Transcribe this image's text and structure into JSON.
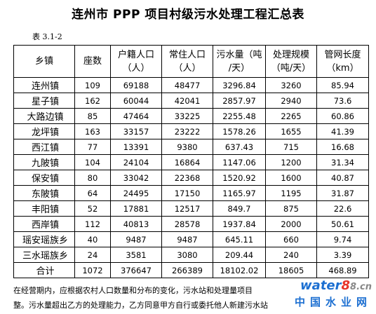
{
  "title": "连州市 PPP 项目村级污水处理工程汇总表",
  "table_no": "表 3.1-2",
  "headers": {
    "town": "乡镇",
    "seats": "座数",
    "reg_pop_1": "户籍人口",
    "reg_pop_2": "（人）",
    "res_pop_1": "常住人口",
    "res_pop_2": "（人）",
    "sewage_1": "污水量（吨",
    "sewage_2": "/天）",
    "capacity_1": "处理规模",
    "capacity_2": "（吨/天）",
    "pipe_1": "管网长度",
    "pipe_2": "（km）"
  },
  "rows": [
    {
      "town": "连州镇",
      "seats": "109",
      "reg_pop": "69188",
      "res_pop": "48477",
      "sewage": "3296.84",
      "capacity": "3260",
      "pipe": "85.94"
    },
    {
      "town": "星子镇",
      "seats": "162",
      "reg_pop": "60044",
      "res_pop": "42041",
      "sewage": "2857.97",
      "capacity": "2940",
      "pipe": "73.6"
    },
    {
      "town": "大路边镇",
      "seats": "85",
      "reg_pop": "47464",
      "res_pop": "33225",
      "sewage": "2255.48",
      "capacity": "2265",
      "pipe": "60.86"
    },
    {
      "town": "龙坪镇",
      "seats": "163",
      "reg_pop": "33157",
      "res_pop": "23222",
      "sewage": "1578.26",
      "capacity": "1655",
      "pipe": "41.39"
    },
    {
      "town": "西江镇",
      "seats": "77",
      "reg_pop": "13391",
      "res_pop": "9380",
      "sewage": "637.43",
      "capacity": "715",
      "pipe": "16.68"
    },
    {
      "town": "九陂镇",
      "seats": "104",
      "reg_pop": "24104",
      "res_pop": "16864",
      "sewage": "1147.06",
      "capacity": "1200",
      "pipe": "31.34"
    },
    {
      "town": "保安镇",
      "seats": "80",
      "reg_pop": "33042",
      "res_pop": "22368",
      "sewage": "1520.92",
      "capacity": "1600",
      "pipe": "40.87"
    },
    {
      "town": "东陂镇",
      "seats": "64",
      "reg_pop": "24495",
      "res_pop": "17150",
      "sewage": "1165.97",
      "capacity": "1195",
      "pipe": "31.87"
    },
    {
      "town": "丰阳镇",
      "seats": "52",
      "reg_pop": "17881",
      "res_pop": "12517",
      "sewage": "849.7",
      "capacity": "875",
      "pipe": "22.6"
    },
    {
      "town": "西岸镇",
      "seats": "112",
      "reg_pop": "40813",
      "res_pop": "28578",
      "sewage": "1937.84",
      "capacity": "2000",
      "pipe": "50.61"
    },
    {
      "town": "瑶安瑶族乡",
      "seats": "40",
      "reg_pop": "9487",
      "res_pop": "9487",
      "sewage": "645.11",
      "capacity": "660",
      "pipe": "9.74"
    },
    {
      "town": "三水瑶族乡",
      "seats": "24",
      "reg_pop": "3581",
      "res_pop": "3080",
      "sewage": "209.44",
      "capacity": "240",
      "pipe": "3.39"
    }
  ],
  "total": {
    "town": "合计",
    "seats": "1072",
    "reg_pop": "376647",
    "res_pop": "266389",
    "sewage": "18102.02",
    "capacity": "18605",
    "pipe": "468.89"
  },
  "footnote": {
    "line1": "在经营期内，应根据农村人口数量和分布的变化，污水站和处理量项目",
    "line2": "整。污水量超出乙方的处理能力，乙方同意甲方自行或委托他人新建污水站"
  },
  "watermark": {
    "part1": "water",
    "part2": "8",
    "part3": "8.cn",
    "bottom": "中国水业网"
  },
  "colors": {
    "watermark_blue": "#1c6fd1",
    "watermark_red": "#e8352b"
  }
}
